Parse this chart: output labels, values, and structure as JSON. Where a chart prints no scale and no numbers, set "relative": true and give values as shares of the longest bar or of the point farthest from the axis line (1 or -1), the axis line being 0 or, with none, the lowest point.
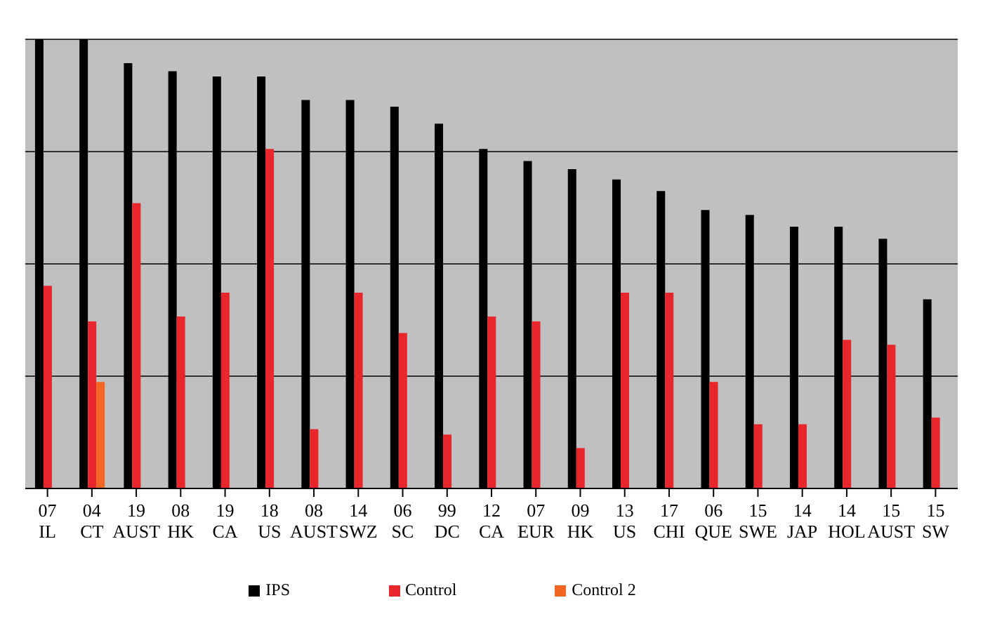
{
  "chart_data": {
    "type": "bar",
    "relative": true,
    "grid": "y",
    "legend": "bottom",
    "categories": [
      "07 IL",
      "04 CT",
      "19 AUST",
      "08 HK",
      "19 CA",
      "18 US",
      "08 AUST",
      "14 SWZ",
      "06 SC",
      "99 DC",
      "12 CA",
      "07 EUR",
      "09 HK",
      "13 US",
      "17 CHI",
      "06 QUE",
      "15 SWE",
      "14 JAP",
      "14 HOL",
      "15 AUST",
      "15 SW"
    ],
    "series": [
      {
        "name": "IPS",
        "color": "#000000",
        "values": [
          1.0,
          1.0,
          0.947,
          0.929,
          0.917,
          0.917,
          0.865,
          0.865,
          0.85,
          0.812,
          0.756,
          0.729,
          0.711,
          0.688,
          0.662,
          0.62,
          0.609,
          0.583,
          0.583,
          0.556,
          0.421
        ]
      },
      {
        "name": "Control",
        "color": "#e8262b",
        "values": [
          0.451,
          0.372,
          0.635,
          0.383,
          0.436,
          0.756,
          0.132,
          0.436,
          0.346,
          0.12,
          0.383,
          0.372,
          0.09,
          0.436,
          0.436,
          0.237,
          0.143,
          0.143,
          0.331,
          0.32,
          0.158
        ]
      },
      {
        "name": "Control 2",
        "color": "#f26522",
        "values": [
          null,
          0.237,
          null,
          null,
          null,
          null,
          null,
          null,
          null,
          null,
          null,
          null,
          null,
          null,
          null,
          null,
          null,
          null,
          null,
          null,
          null
        ]
      }
    ]
  }
}
